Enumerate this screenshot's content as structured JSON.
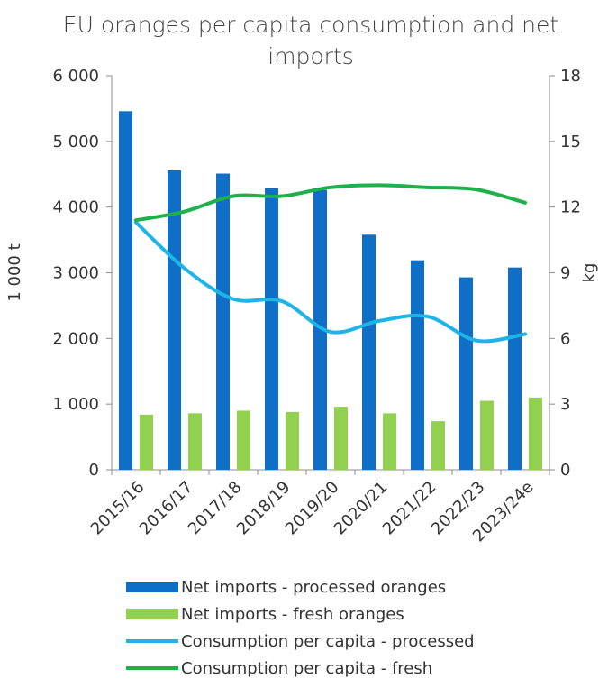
{
  "chart_data": {
    "type": "bar",
    "title": "EU oranges per capita consumption and net imports",
    "ylabel": "1 000 t",
    "y2label": "kg",
    "ylim": [
      0,
      6000
    ],
    "y2lim": [
      0,
      18
    ],
    "yticks": [
      "0",
      "1 000",
      "2 000",
      "3 000",
      "4 000",
      "5 000",
      "6 000"
    ],
    "y2ticks": [
      "0",
      "3",
      "6",
      "9",
      "12",
      "15",
      "18"
    ],
    "categories": [
      "2015/16",
      "2016/17",
      "2017/18",
      "2018/19",
      "2019/20",
      "2020/21",
      "2021/22",
      "2022/23",
      "2023/24e"
    ],
    "grid": false,
    "legend_position": "bottom",
    "series": [
      {
        "name": "Net imports - processed oranges",
        "kind": "bar",
        "axis": "left",
        "color": "#0f6fc6",
        "values": [
          5460,
          4560,
          4510,
          4290,
          4260,
          3580,
          3190,
          2930,
          3080
        ]
      },
      {
        "name": "Net imports - fresh oranges",
        "kind": "bar",
        "axis": "left",
        "color": "#92d050",
        "values": [
          840,
          860,
          900,
          880,
          960,
          860,
          740,
          1050,
          1100
        ]
      },
      {
        "name": "Consumption per capita - processed",
        "kind": "line",
        "axis": "right",
        "color": "#1eb4e6",
        "values": [
          11.3,
          9.2,
          7.8,
          7.7,
          6.3,
          6.8,
          7.0,
          5.9,
          6.2
        ]
      },
      {
        "name": "Consumption per capita - fresh",
        "kind": "line",
        "axis": "right",
        "color": "#1db04b",
        "values": [
          11.4,
          11.8,
          12.5,
          12.5,
          12.9,
          13.0,
          12.9,
          12.8,
          12.2
        ]
      }
    ]
  }
}
